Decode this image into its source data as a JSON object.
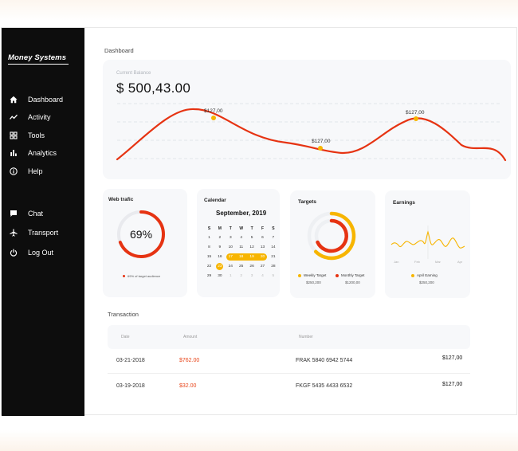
{
  "app": {
    "brand": "Money Systems"
  },
  "nav": {
    "primary": [
      {
        "label": "Dashboard",
        "icon": "home-icon"
      },
      {
        "label": "Activity",
        "icon": "activity-icon"
      },
      {
        "label": "Tools",
        "icon": "grid-icon"
      },
      {
        "label": "Analytics",
        "icon": "bar-chart-icon"
      },
      {
        "label": "Help",
        "icon": "info-icon"
      }
    ],
    "secondary": [
      {
        "label": "Chat",
        "icon": "chat-icon"
      },
      {
        "label": "Transport",
        "icon": "plane-icon"
      },
      {
        "label": "Log Out",
        "icon": "power-icon"
      }
    ]
  },
  "dashboard": {
    "title": "Dashboard",
    "balance_label": "Current Balance",
    "balance_value": "$ 500,43.00",
    "chart_data": {
      "type": "line",
      "color": "#e63312",
      "markers": [
        {
          "label": "$127,00"
        },
        {
          "label": "$127,00"
        },
        {
          "label": "$127,00"
        }
      ],
      "grid": true
    }
  },
  "web_traffic": {
    "title": "Web trafic",
    "percent_label": "69%",
    "percent": 69,
    "legend": "69% of target audience",
    "color": "#e63312"
  },
  "calendar": {
    "title": "Calendar",
    "month": "September, 2019",
    "weekdays": [
      "S",
      "M",
      "T",
      "W",
      "T",
      "F",
      "S"
    ],
    "weeks": [
      [
        "1",
        "2",
        "3",
        "4",
        "5",
        "6",
        "7"
      ],
      [
        "8",
        "9",
        "10",
        "11",
        "12",
        "13",
        "14"
      ],
      [
        "15",
        "16",
        "17",
        "18",
        "19",
        "20",
        "21"
      ],
      [
        "22",
        "23",
        "24",
        "25",
        "26",
        "27",
        "28"
      ],
      [
        "29",
        "30",
        "1",
        "2",
        "3",
        "4",
        "5"
      ]
    ],
    "range_days": [
      "17",
      "18",
      "19",
      "20"
    ],
    "today": "23",
    "accent": "#f7b500"
  },
  "targets": {
    "title": "Targets",
    "weekly_label": "Weekly Target",
    "weekly_value": "$250,200",
    "monthly_label": "Monthly Target",
    "monthly_value": "$1200,00",
    "weekly_color": "#f7b500",
    "monthly_color": "#e63312"
  },
  "earnings": {
    "title": "Earnings",
    "months": [
      "Jan",
      "Feb",
      "Mar",
      "Apr"
    ],
    "legend_label": "April Earning",
    "legend_value": "$250,200",
    "color": "#f7b500"
  },
  "transactions": {
    "title": "Transaction",
    "columns": {
      "date": "Date",
      "amount": "Amount",
      "number": "Number"
    },
    "rows": [
      {
        "date": "03-21-2018",
        "amount": "$762.00",
        "number": "FRAK 5840 6942 5744",
        "total": "$127,00"
      },
      {
        "date": "03-19-2018",
        "amount": "$32.00",
        "number": "FKGF 5435 4433 6532",
        "total": "$127,00"
      }
    ]
  }
}
